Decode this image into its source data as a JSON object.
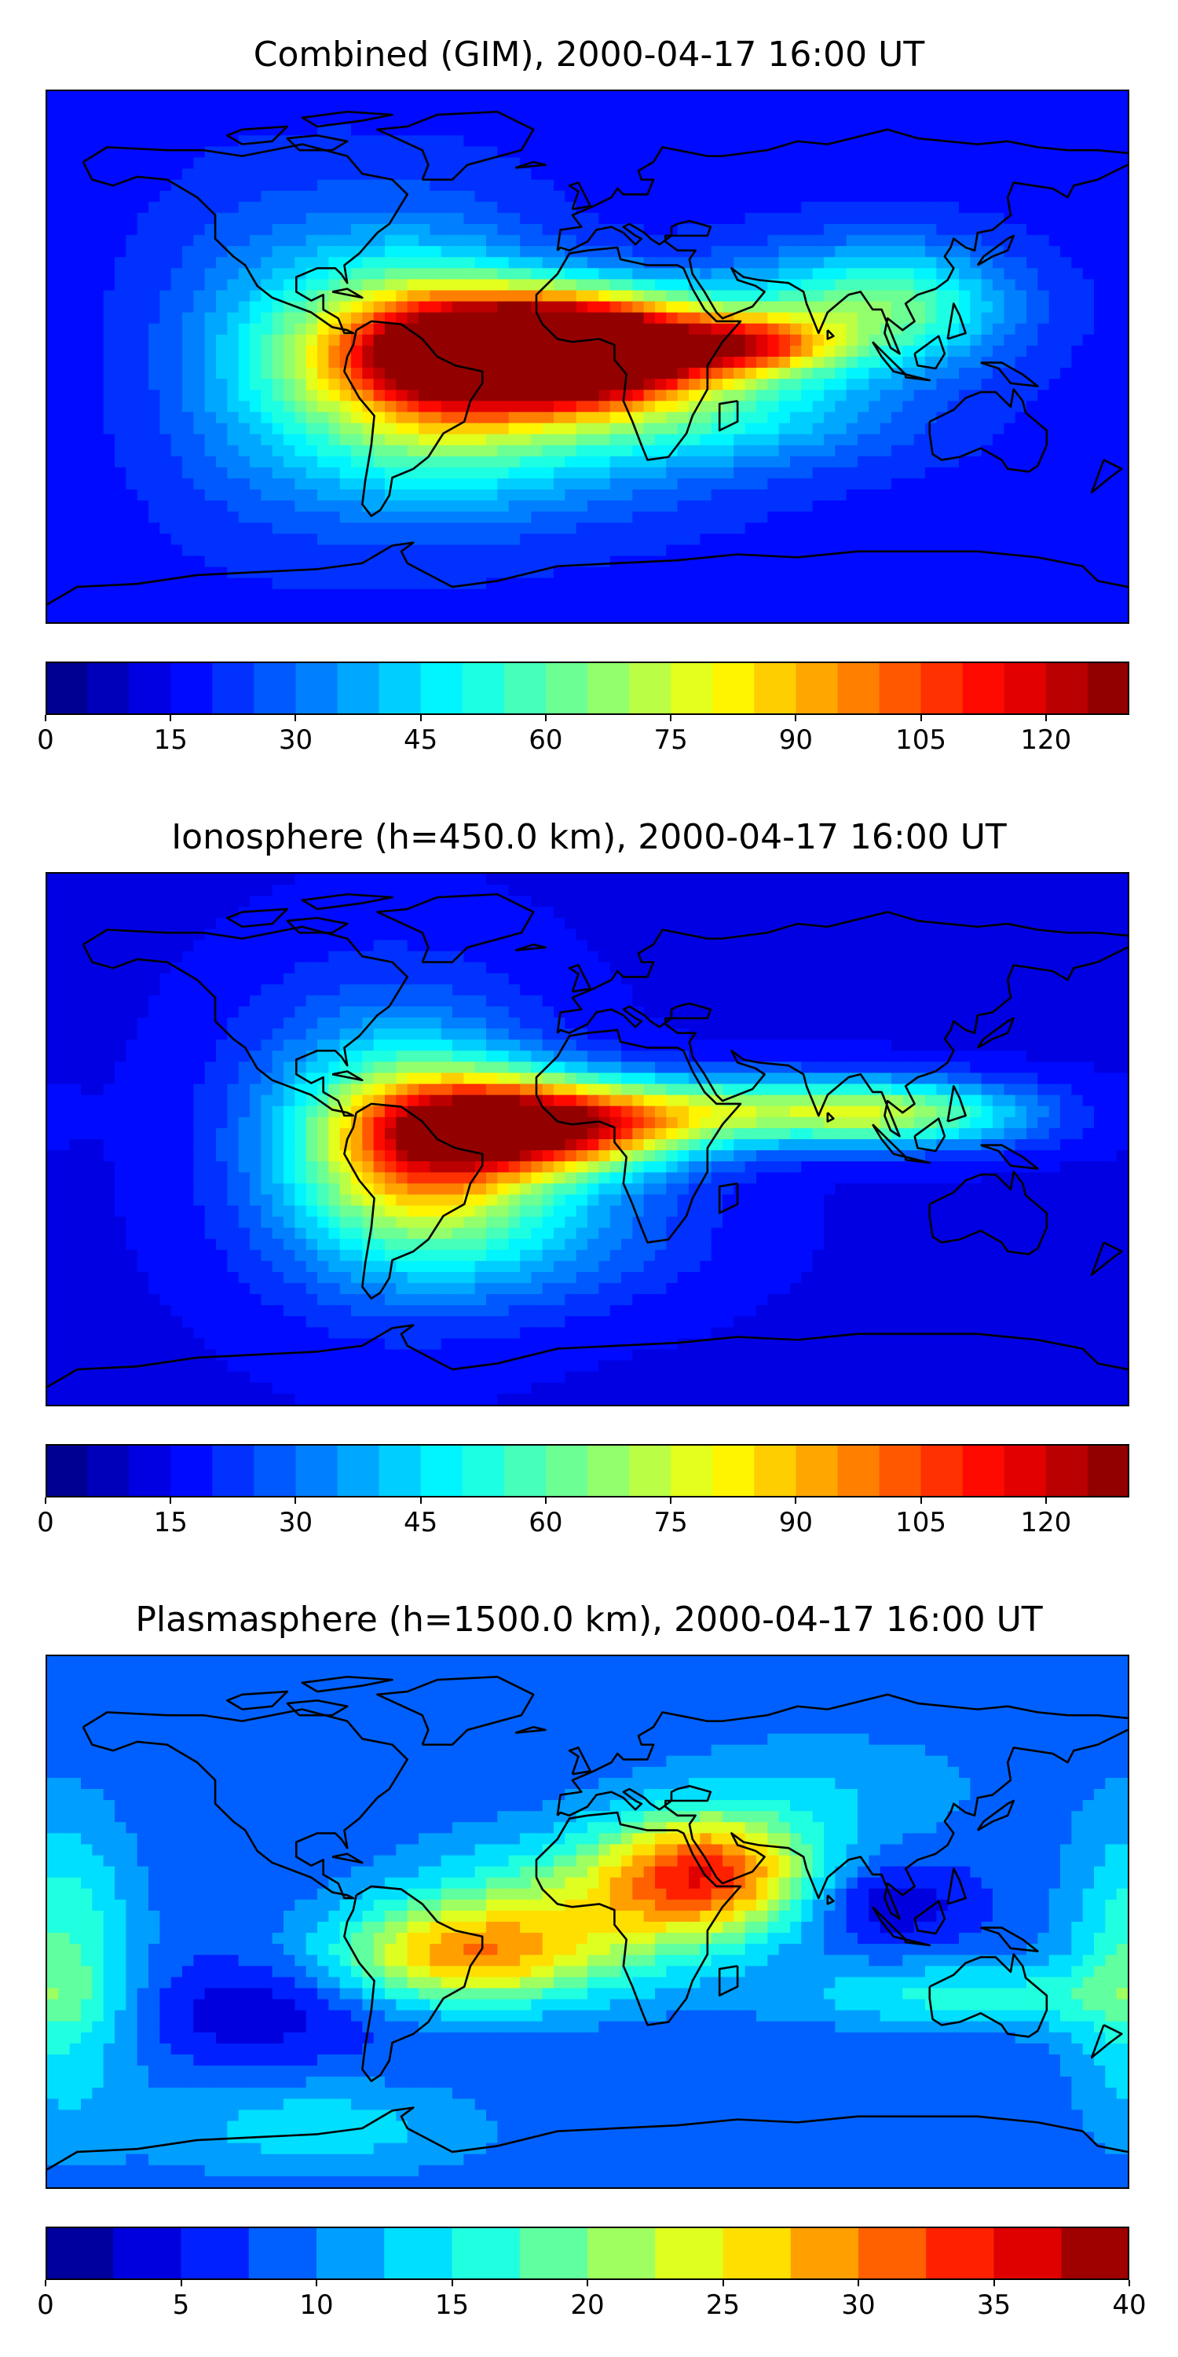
{
  "panels": [
    {
      "title": "Combined (GIM), 2000-04-17 16:00 UT",
      "colorbar": {
        "vmin": 0,
        "vmax": 130,
        "levels": 26,
        "ticks": [
          0,
          15,
          30,
          45,
          60,
          75,
          90,
          105,
          120
        ]
      },
      "field": {
        "background": 18,
        "blobs": [
          {
            "lon": -30,
            "lat": 2,
            "sx": 35,
            "sy": 14,
            "v": 108
          },
          {
            "lon": 8,
            "lat": 3,
            "sx": 28,
            "sy": 12,
            "v": 95
          },
          {
            "lon": -60,
            "lat": 0,
            "sx": 30,
            "sy": 30,
            "v": 45
          },
          {
            "lon": -20,
            "lat": -25,
            "sx": 45,
            "sy": 20,
            "v": 25
          },
          {
            "lon": 55,
            "lat": 4,
            "sx": 20,
            "sy": 7,
            "v": 55
          },
          {
            "lon": 80,
            "lat": 14,
            "sx": 30,
            "sy": 15,
            "v": 30
          },
          {
            "lon": 110,
            "lat": 18,
            "sx": 25,
            "sy": 14,
            "v": 25
          },
          {
            "lon": -110,
            "lat": 0,
            "sx": 25,
            "sy": 35,
            "v": 15
          },
          {
            "lon": 50,
            "lat": -20,
            "sx": 40,
            "sy": 12,
            "v": 22
          }
        ]
      }
    },
    {
      "title": "Ionosphere  (h=450.0 km), 2000-04-17 16:00 UT",
      "colorbar": {
        "vmin": 0,
        "vmax": 130,
        "levels": 26,
        "ticks": [
          0,
          15,
          30,
          45,
          60,
          75,
          90,
          105,
          120
        ]
      },
      "field": {
        "background": 14,
        "blobs": [
          {
            "lon": -30,
            "lat": 5,
            "sx": 30,
            "sy": 12,
            "v": 65
          },
          {
            "lon": -55,
            "lat": -5,
            "sx": 25,
            "sy": 20,
            "v": 40
          },
          {
            "lon": -65,
            "lat": 0,
            "sx": 35,
            "sy": 35,
            "v": 35
          },
          {
            "lon": 0,
            "lat": 4,
            "sx": 30,
            "sy": 10,
            "v": 55
          },
          {
            "lon": 60,
            "lat": 10,
            "sx": 40,
            "sy": 8,
            "v": 45
          },
          {
            "lon": 110,
            "lat": 8,
            "sx": 30,
            "sy": 8,
            "v": 35
          },
          {
            "lon": -20,
            "lat": -30,
            "sx": 40,
            "sy": 18,
            "v": 20
          }
        ]
      }
    },
    {
      "title": "Plasmasphere (h=1500.0 km), 2000-04-17 16:00 UT",
      "colorbar": {
        "vmin": 0,
        "vmax": 40,
        "levels": 16,
        "ticks": [
          0,
          5,
          10,
          15,
          20,
          25,
          30,
          35,
          40
        ]
      },
      "field": {
        "background": 8,
        "blobs": [
          {
            "lon": 40,
            "lat": 17,
            "sx": 25,
            "sy": 14,
            "v": 22
          },
          {
            "lon": -45,
            "lat": -12,
            "sx": 30,
            "sy": 12,
            "v": 16
          },
          {
            "lon": -5,
            "lat": 2,
            "sx": 40,
            "sy": 18,
            "v": 12
          },
          {
            "lon": -175,
            "lat": -15,
            "sx": 18,
            "sy": 35,
            "v": 10
          },
          {
            "lon": 125,
            "lat": -25,
            "sx": 40,
            "sy": 8,
            "v": 8
          },
          {
            "lon": 100,
            "lat": 6,
            "sx": 18,
            "sy": 9,
            "v": -6
          },
          {
            "lon": -110,
            "lat": -30,
            "sx": 30,
            "sy": 12,
            "v": -5
          },
          {
            "lon": 80,
            "lat": 45,
            "sx": 40,
            "sy": 15,
            "v": 4
          },
          {
            "lon": -90,
            "lat": -70,
            "sx": 40,
            "sy": 12,
            "v": 6
          }
        ]
      }
    }
  ]
}
